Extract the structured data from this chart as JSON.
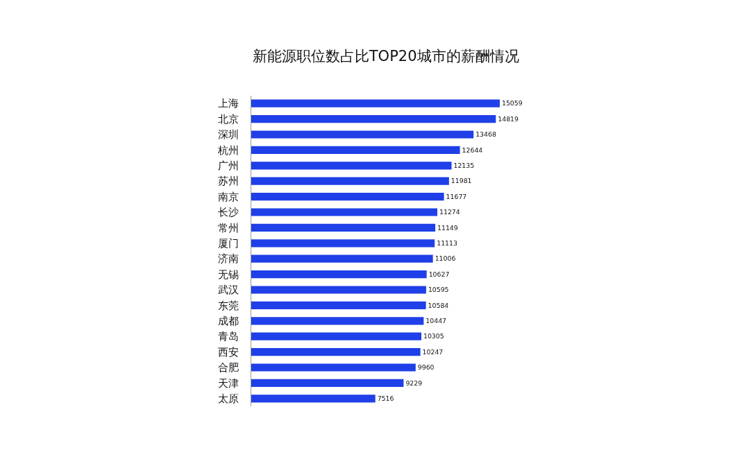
{
  "chart_data": {
    "type": "bar",
    "orientation": "horizontal",
    "title": "新能源职位数占比TOP20城市的薪酬情况",
    "categories": [
      "上海",
      "北京",
      "深圳",
      "杭州",
      "广州",
      "苏州",
      "南京",
      "长沙",
      "常州",
      "厦门",
      "济南",
      "无锡",
      "武汉",
      "东莞",
      "成都",
      "青岛",
      "西安",
      "合肥",
      "天津",
      "太原"
    ],
    "values": [
      15059,
      14819,
      13468,
      12644,
      12135,
      11981,
      11677,
      11274,
      11149,
      11113,
      11006,
      10627,
      10595,
      10584,
      10447,
      10305,
      10247,
      9960,
      9229,
      7516
    ],
    "color": "#1f3fe8",
    "data_labels": true,
    "tick_labels": "y"
  }
}
